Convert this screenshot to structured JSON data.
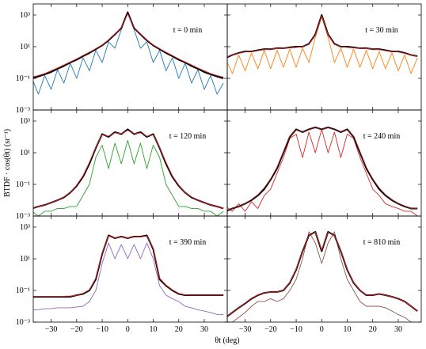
{
  "axes": {
    "xlim": [
      -37,
      39
    ],
    "xticks": [
      {
        "value": -30,
        "label": "−30"
      },
      {
        "value": -20,
        "label": "−20"
      },
      {
        "value": -10,
        "label": "−10"
      },
      0,
      10,
      20,
      30
    ],
    "ylim": [
      0.001,
      5000
    ],
    "y_scale": "log",
    "yticks": [
      {
        "value": 0.001,
        "label": "10⁻³"
      },
      {
        "value": 0.1,
        "label": "10⁻¹"
      },
      {
        "value": 10,
        "label": "10¹"
      },
      {
        "value": 1000,
        "label": "10³"
      }
    ],
    "x_label": "θt (deg)",
    "y_label": "BTDF · cos(θt) (sr⁻¹)"
  },
  "chart_data": [
    {
      "type": "line",
      "annotation": "t = 0 min",
      "x": [
        -37.5,
        -35,
        -32.5,
        -30,
        -27.5,
        -25,
        -22.5,
        -20,
        -17.5,
        -15,
        -12.5,
        -10,
        -7.5,
        -5,
        -2.5,
        0,
        2.5,
        5,
        7.5,
        10,
        12.5,
        15,
        17.5,
        20,
        22.5,
        25,
        27.5,
        30,
        32.5,
        35,
        37.5
      ],
      "series": [
        {
          "color": "#1f77b4",
          "values": [
            0.1,
            0.01,
            0.15,
            0.02,
            0.35,
            0.05,
            0.9,
            0.1,
            2,
            0.3,
            6,
            1,
            20,
            8,
            120,
            1500,
            120,
            8,
            20,
            1,
            6,
            0.3,
            2,
            0.1,
            0.9,
            0.05,
            0.35,
            0.02,
            0.15,
            0.01,
            0.05
          ]
        },
        {
          "color": "#000000",
          "values": [
            0.1,
            0.13,
            0.18,
            0.25,
            0.4,
            0.6,
            1,
            1.5,
            2.5,
            4,
            7,
            12,
            25,
            60,
            150,
            1500,
            150,
            60,
            25,
            12,
            7,
            4,
            2.5,
            1.5,
            1,
            0.6,
            0.4,
            0.25,
            0.18,
            0.13,
            0.1
          ]
        },
        {
          "color": "#d62728",
          "values": [
            0.12,
            0.15,
            0.2,
            0.3,
            0.45,
            0.7,
            1.1,
            1.7,
            2.8,
            4.5,
            7.5,
            13,
            27,
            65,
            160,
            1200,
            160,
            65,
            27,
            13,
            7.5,
            4.5,
            2.8,
            1.7,
            1.1,
            0.7,
            0.45,
            0.3,
            0.2,
            0.15,
            0.12
          ]
        }
      ]
    },
    {
      "type": "line",
      "annotation": "t = 30 min",
      "x": [
        -37.5,
        -35,
        -32.5,
        -30,
        -27.5,
        -25,
        -22.5,
        -20,
        -17.5,
        -15,
        -12.5,
        -10,
        -7.5,
        -5,
        -2.5,
        0,
        2.5,
        5,
        7.5,
        10,
        12.5,
        15,
        17.5,
        20,
        22.5,
        25,
        27.5,
        30,
        32.5,
        35,
        37.5
      ],
      "series": [
        {
          "color": "#ff7f0e",
          "values": [
            1.5,
            0.2,
            3,
            0.3,
            4,
            0.4,
            6,
            0.4,
            6,
            0.5,
            7,
            0.5,
            8,
            1,
            40,
            800,
            40,
            1,
            8,
            0.5,
            7,
            0.5,
            6,
            0.4,
            5,
            0.4,
            4,
            0.3,
            3,
            0.2,
            2
          ]
        },
        {
          "color": "#000000",
          "values": [
            2,
            3,
            4,
            5,
            5,
            6,
            7,
            7,
            8,
            8,
            9,
            10,
            10,
            15,
            60,
            1000,
            60,
            15,
            10,
            10,
            9,
            8,
            8,
            7,
            7,
            6,
            5,
            5,
            4,
            3,
            2.5
          ]
        },
        {
          "color": "#d62728",
          "values": [
            2.2,
            3,
            3.8,
            4.6,
            5,
            5.6,
            6.5,
            7,
            7.5,
            8,
            8.5,
            9,
            10,
            14,
            55,
            900,
            55,
            14,
            10,
            9,
            8.5,
            8,
            7.5,
            7,
            6.5,
            5.6,
            5,
            4.6,
            3.8,
            3,
            2.4
          ]
        }
      ]
    },
    {
      "type": "line",
      "annotation": "t = 120 min",
      "x": [
        -37.5,
        -35,
        -32.5,
        -30,
        -27.5,
        -25,
        -22.5,
        -20,
        -17.5,
        -15,
        -12.5,
        -10,
        -7.5,
        -5,
        -2.5,
        0,
        2.5,
        5,
        7.5,
        10,
        12.5,
        15,
        17.5,
        20,
        22.5,
        25,
        27.5,
        30,
        32.5,
        35,
        37.5
      ],
      "series": [
        {
          "color": "#2ca02c",
          "values": [
            0.002,
            0.001,
            0.002,
            0.002,
            0.003,
            0.003,
            0.004,
            0.004,
            0.02,
            0.1,
            5,
            30,
            1,
            40,
            2,
            60,
            2,
            40,
            1,
            30,
            5,
            0.1,
            0.02,
            0.004,
            0.004,
            0.003,
            0.003,
            0.002,
            0.002,
            0.001,
            0.002
          ]
        },
        {
          "color": "#000000",
          "values": [
            0.003,
            0.004,
            0.005,
            0.007,
            0.01,
            0.015,
            0.03,
            0.08,
            0.3,
            2,
            20,
            150,
            100,
            200,
            150,
            300,
            150,
            200,
            100,
            150,
            20,
            2,
            0.3,
            0.08,
            0.03,
            0.015,
            0.01,
            0.007,
            0.005,
            0.004,
            0.003
          ]
        },
        {
          "color": "#d62728",
          "values": [
            0.003,
            0.004,
            0.005,
            0.007,
            0.01,
            0.016,
            0.03,
            0.09,
            0.35,
            2.5,
            22,
            140,
            110,
            180,
            160,
            260,
            160,
            180,
            110,
            140,
            22,
            2.5,
            0.35,
            0.09,
            0.03,
            0.016,
            0.01,
            0.007,
            0.005,
            0.004,
            0.003
          ]
        }
      ]
    },
    {
      "type": "line",
      "annotation": "t = 240 min",
      "x": [
        -37.5,
        -35,
        -32.5,
        -30,
        -27.5,
        -25,
        -22.5,
        -20,
        -17.5,
        -15,
        -12.5,
        -10,
        -7.5,
        -5,
        -2.5,
        0,
        2.5,
        5,
        7.5,
        10,
        12.5,
        15,
        17.5,
        20,
        22.5,
        25,
        27.5,
        30,
        32.5,
        35,
        37.5
      ],
      "series": [
        {
          "color": "#d62728",
          "values": [
            0.004,
            0.002,
            0.006,
            0.002,
            0.008,
            0.003,
            0.02,
            0.05,
            0.5,
            5,
            80,
            150,
            5,
            200,
            10,
            300,
            10,
            200,
            5,
            150,
            80,
            5,
            0.5,
            0.05,
            0.02,
            0.006,
            0.004,
            0.003,
            0.002,
            0.002,
            0.001
          ]
        },
        {
          "color": "#000000",
          "values": [
            0.002,
            0.003,
            0.004,
            0.006,
            0.01,
            0.02,
            0.05,
            0.2,
            1,
            10,
            100,
            300,
            200,
            300,
            400,
            300,
            400,
            300,
            200,
            300,
            100,
            10,
            1,
            0.2,
            0.05,
            0.02,
            0.01,
            0.006,
            0.004,
            0.003,
            0.003
          ]
        },
        {
          "color": "#8b1a1a",
          "values": [
            0.002,
            0.003,
            0.004,
            0.006,
            0.011,
            0.022,
            0.06,
            0.22,
            1.2,
            11,
            110,
            280,
            210,
            290,
            380,
            300,
            380,
            290,
            210,
            280,
            110,
            11,
            1.2,
            0.22,
            0.06,
            0.022,
            0.011,
            0.006,
            0.004,
            0.003,
            0.003
          ]
        }
      ]
    },
    {
      "type": "line",
      "annotation": "t = 390 min",
      "x": [
        -37.5,
        -35,
        -32.5,
        -30,
        -27.5,
        -25,
        -22.5,
        -20,
        -17.5,
        -15,
        -12.5,
        -10,
        -7.5,
        -5,
        -2.5,
        0,
        2.5,
        5,
        7.5,
        10,
        12.5,
        15,
        17.5,
        20,
        22.5,
        25,
        27.5,
        30,
        32.5,
        35,
        37.5
      ],
      "series": [
        {
          "color": "#9467bd",
          "values": [
            0.006,
            0.006,
            0.007,
            0.007,
            0.008,
            0.008,
            0.008,
            0.009,
            0.01,
            0.02,
            0.1,
            5,
            100,
            10,
            80,
            10,
            80,
            10,
            100,
            10,
            0.2,
            0.05,
            0.03,
            0.02,
            0.01,
            0.008,
            0.006,
            0.005,
            0.004,
            0.003,
            0.003
          ]
        },
        {
          "color": "#000000",
          "values": [
            0.04,
            0.04,
            0.04,
            0.04,
            0.04,
            0.04,
            0.04,
            0.05,
            0.06,
            0.1,
            0.5,
            20,
            300,
            200,
            250,
            200,
            250,
            250,
            300,
            40,
            0.5,
            0.2,
            0.1,
            0.06,
            0.05,
            0.05,
            0.05,
            0.05,
            0.05,
            0.05,
            0.05
          ]
        },
        {
          "color": "#d62728",
          "values": [
            0.042,
            0.042,
            0.042,
            0.042,
            0.042,
            0.043,
            0.044,
            0.05,
            0.065,
            0.11,
            0.6,
            22,
            280,
            210,
            240,
            210,
            240,
            240,
            280,
            45,
            0.6,
            0.22,
            0.11,
            0.065,
            0.052,
            0.05,
            0.05,
            0.05,
            0.05,
            0.05,
            0.05
          ]
        }
      ]
    },
    {
      "type": "line",
      "annotation": "t = 810 min",
      "x": [
        -37.5,
        -35,
        -32.5,
        -30,
        -27.5,
        -25,
        -22.5,
        -20,
        -17.5,
        -15,
        -12.5,
        -10,
        -7.5,
        -5,
        -2.5,
        0,
        2.5,
        5,
        7.5,
        10,
        12.5,
        15,
        17.5,
        20,
        22.5,
        25,
        27.5,
        30,
        32.5,
        35,
        37.5
      ],
      "series": [
        {
          "color": "#8c564b",
          "values": [
            0.001,
            0.001,
            0.002,
            0.004,
            0.01,
            0.02,
            0.02,
            0.03,
            0.02,
            0.03,
            0.1,
            0.5,
            10,
            500,
            100,
            5,
            100,
            500,
            10,
            0.5,
            0.1,
            0.02,
            0.01,
            0.01,
            0.01,
            0.008,
            0.005,
            0.003,
            0.002,
            0.001,
            0.001
          ]
        },
        {
          "color": "#000000",
          "values": [
            0.002,
            0.004,
            0.008,
            0.015,
            0.03,
            0.05,
            0.07,
            0.08,
            0.08,
            0.1,
            0.3,
            2,
            30,
            300,
            500,
            30,
            500,
            300,
            30,
            2,
            0.3,
            0.1,
            0.05,
            0.05,
            0.06,
            0.05,
            0.04,
            0.03,
            0.02,
            0.01,
            0.005
          ]
        },
        {
          "color": "#d62728",
          "values": [
            0.002,
            0.004,
            0.008,
            0.016,
            0.032,
            0.052,
            0.07,
            0.08,
            0.08,
            0.1,
            0.32,
            2.2,
            32,
            290,
            480,
            35,
            480,
            290,
            32,
            2.2,
            0.32,
            0.1,
            0.05,
            0.05,
            0.06,
            0.05,
            0.04,
            0.03,
            0.02,
            0.01,
            0.005
          ]
        }
      ]
    }
  ]
}
